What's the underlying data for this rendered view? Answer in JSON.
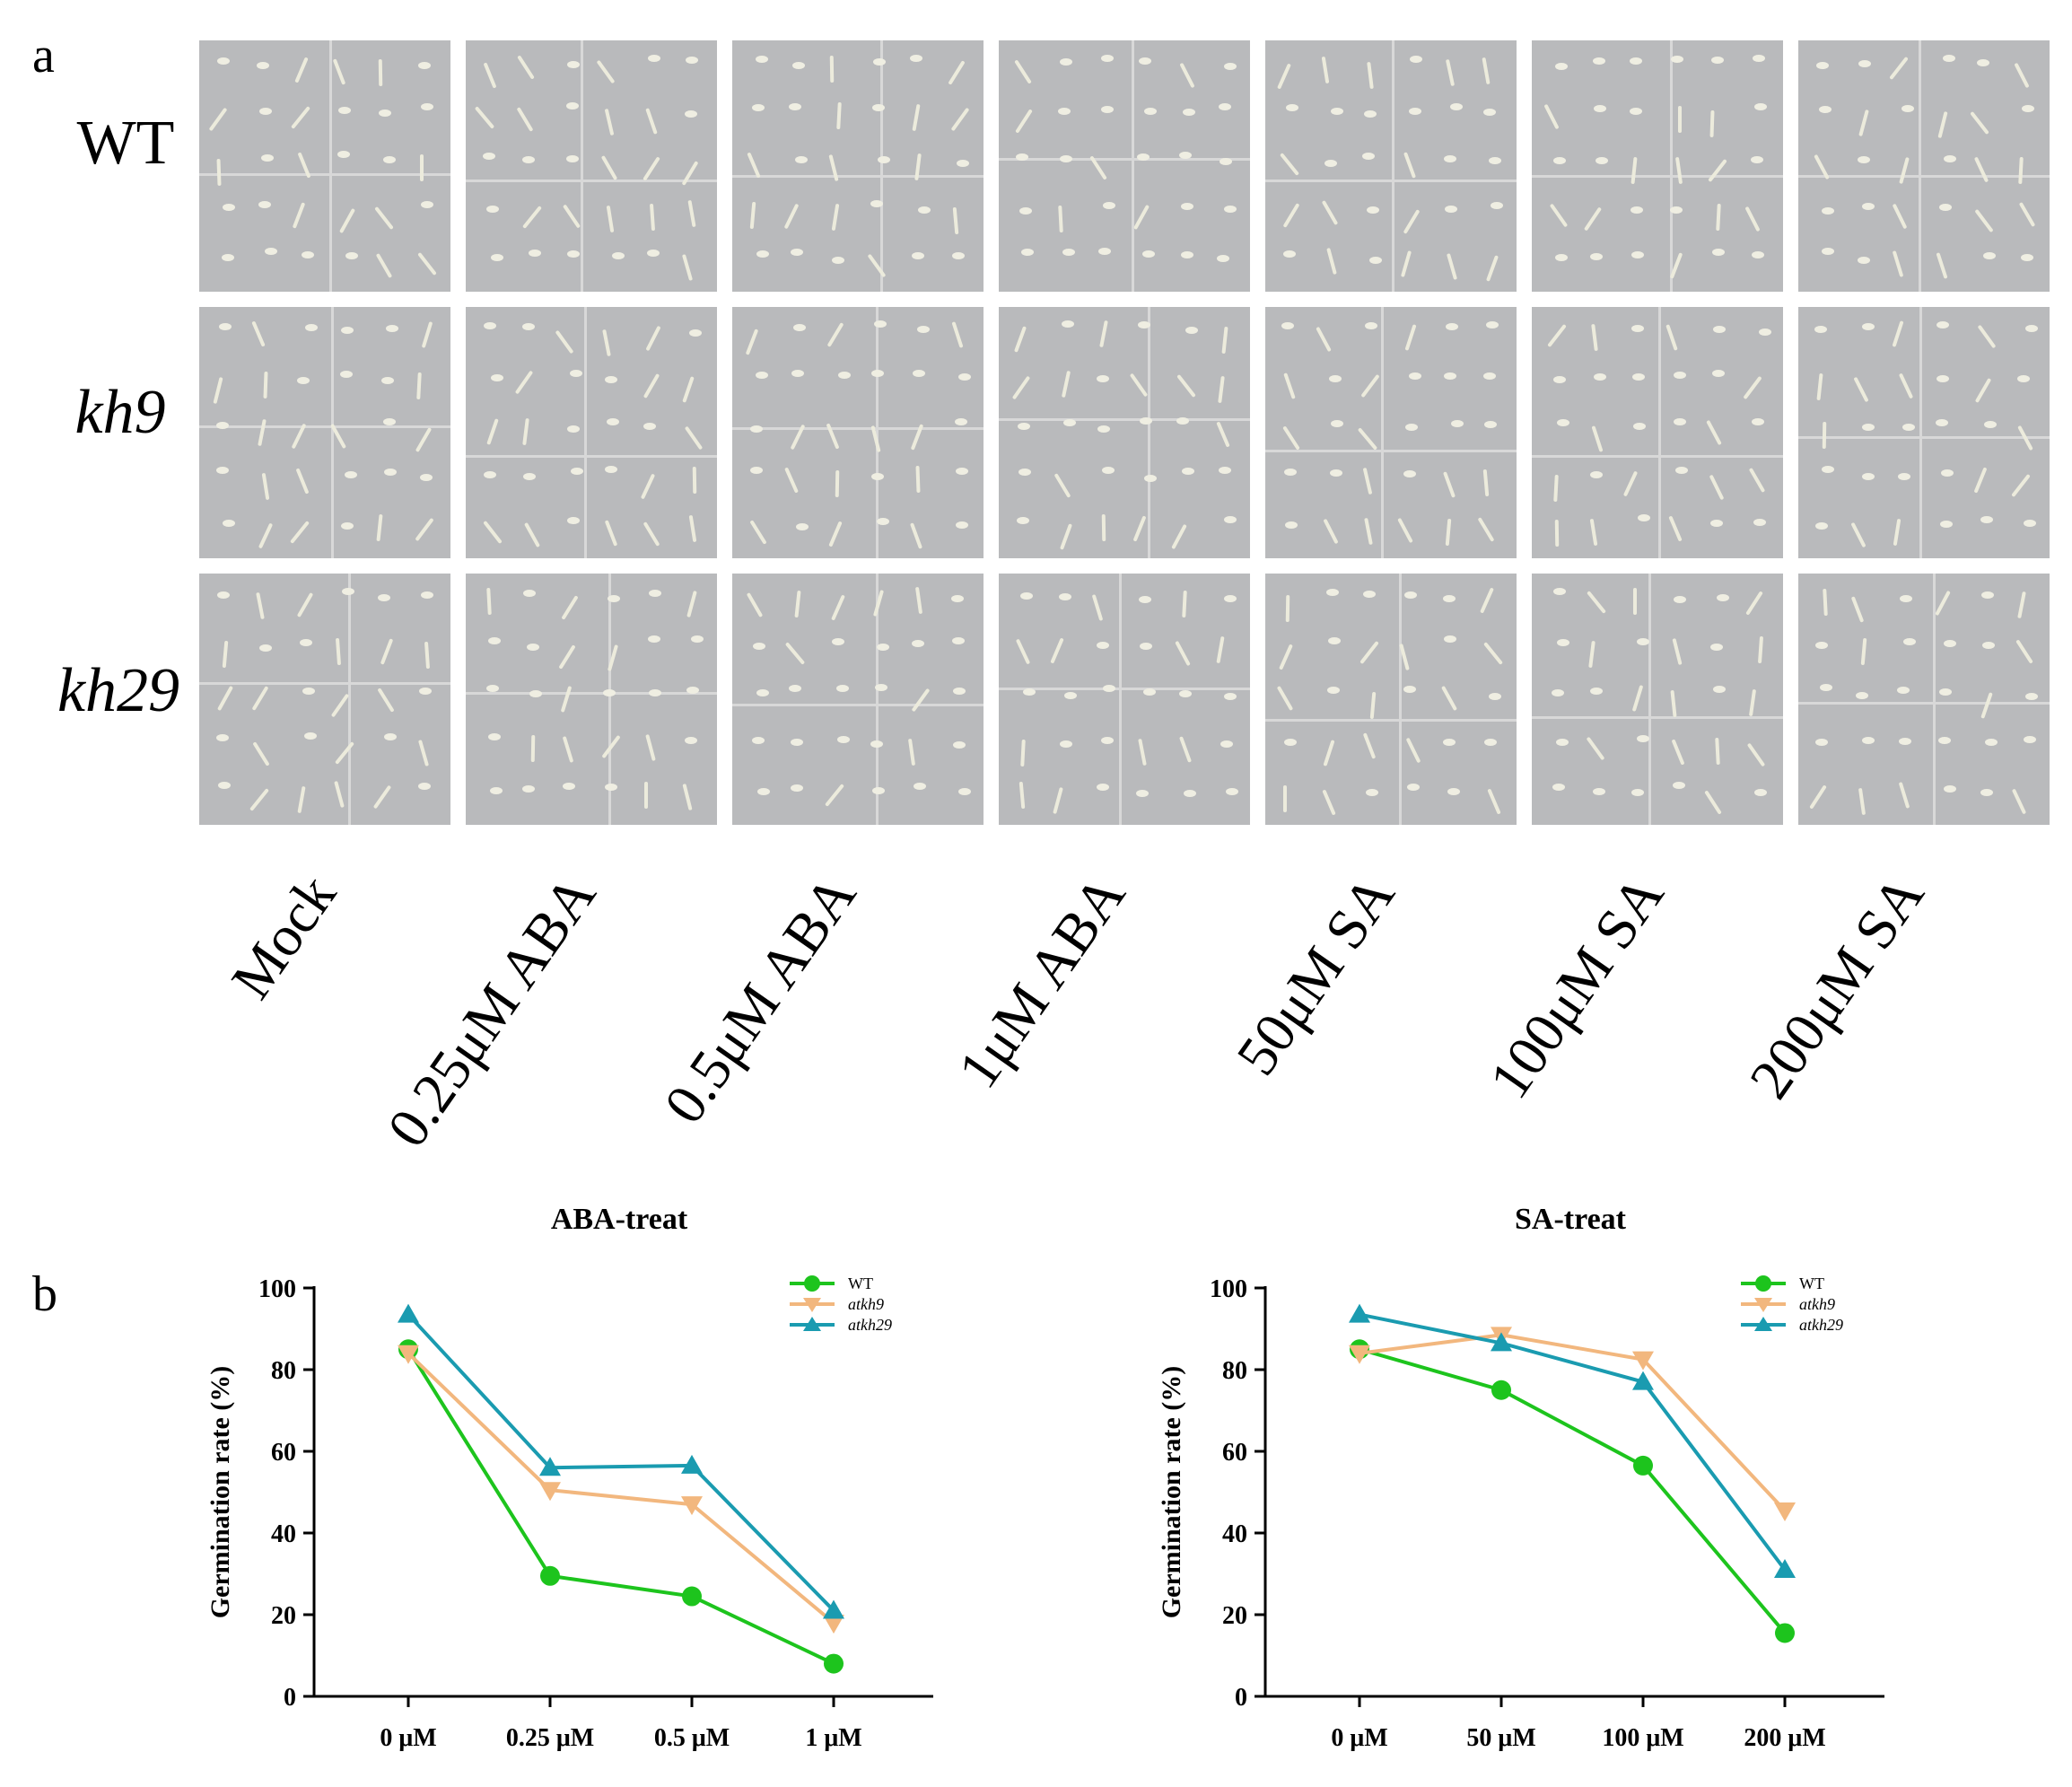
{
  "panel_a": {
    "letter": "a",
    "row_labels": [
      "WT",
      "kh9",
      "kh29"
    ],
    "column_labels": [
      "Mock",
      "0.25μM ABA",
      "0.5μM ABA",
      "1μM ABA",
      "50μM SA",
      "100μM SA",
      "200μM SA"
    ]
  },
  "panel_b": {
    "letter": "b"
  },
  "colors": {
    "WT": "#1dc41d",
    "atkh9": "#f2b77e",
    "atkh29": "#1a9bb0"
  },
  "chart_data": [
    {
      "type": "line",
      "title": "ABA-treat",
      "xlabel": "",
      "ylabel": "Germination rate (%)",
      "categories": [
        "0 μM",
        "0.25 μM",
        "0.5 μM",
        "1 μM"
      ],
      "ylim": [
        0,
        100
      ],
      "yticks": [
        "0",
        "20",
        "40",
        "60",
        "80",
        "100"
      ],
      "legend_position": "top-right",
      "series": [
        {
          "name": "WT",
          "values": [
            85,
            29.5,
            24.5,
            8
          ],
          "marker": "circle"
        },
        {
          "name": "atkh9",
          "values": [
            84,
            50.5,
            47,
            18
          ],
          "marker": "triangle-down"
        },
        {
          "name": "atkh29",
          "values": [
            93.5,
            56,
            56.5,
            21
          ],
          "marker": "triangle-up"
        }
      ]
    },
    {
      "type": "line",
      "title": "SA-treat",
      "xlabel": "",
      "ylabel": "Germination rate (%)",
      "categories": [
        "0 μM",
        "50 μM",
        "100 μM",
        "200 μM"
      ],
      "ylim": [
        0,
        100
      ],
      "yticks": [
        "0",
        "20",
        "40",
        "60",
        "80",
        "100"
      ],
      "legend_position": "top-right",
      "series": [
        {
          "name": "WT",
          "values": [
            85,
            75,
            56.5,
            15.5
          ],
          "marker": "circle"
        },
        {
          "name": "atkh9",
          "values": [
            84,
            88.5,
            82.5,
            45.5
          ],
          "marker": "triangle-down"
        },
        {
          "name": "atkh29",
          "values": [
            93.5,
            86.5,
            77,
            31
          ],
          "marker": "triangle-up"
        }
      ]
    }
  ]
}
